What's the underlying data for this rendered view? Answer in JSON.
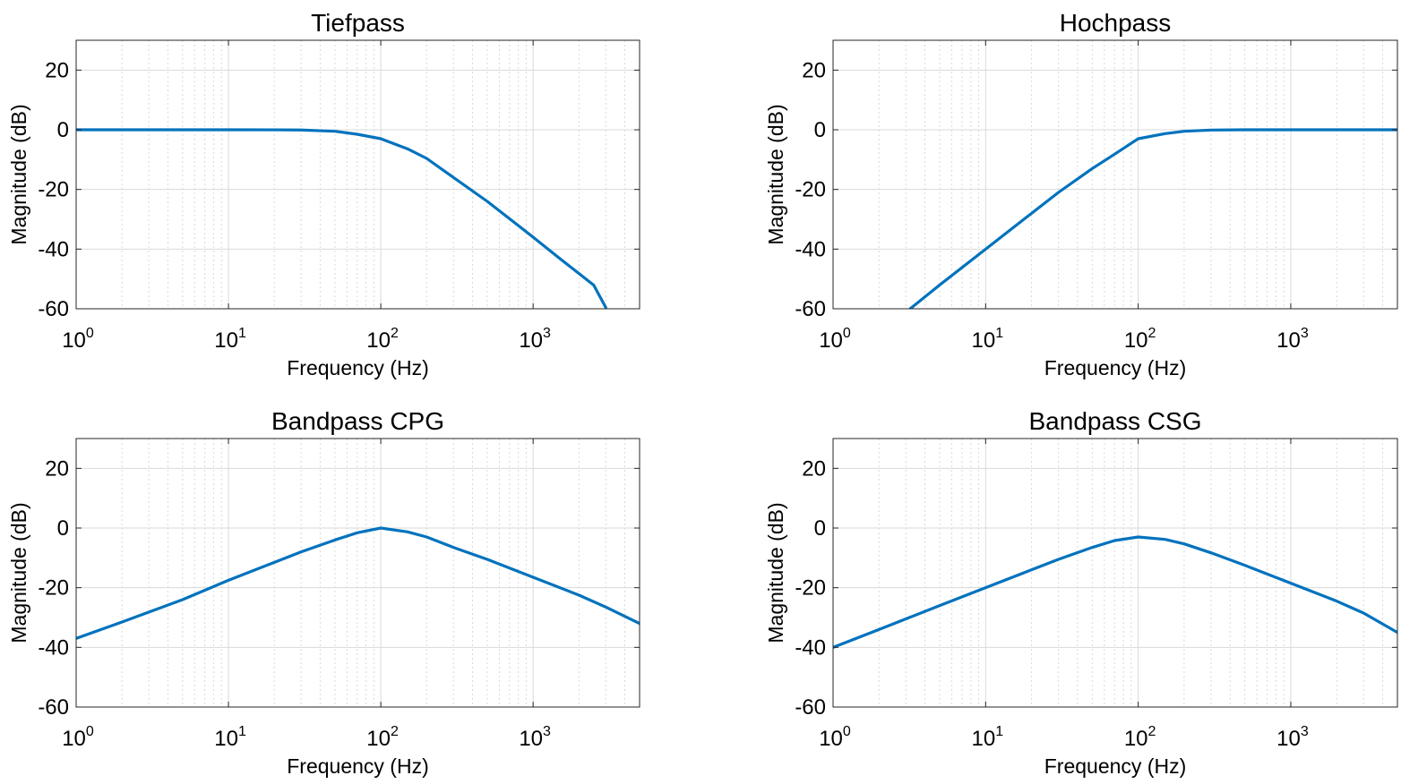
{
  "colors": {
    "line": "#0072BD",
    "axes": "#262626",
    "grid": "#d9d9d9",
    "background": "#ffffff"
  },
  "chart_data": [
    {
      "type": "line",
      "title": "Tiefpass",
      "xlabel": "Frequency  (Hz)",
      "ylabel": "Magnitude (dB)",
      "xscale": "log",
      "xlim": [
        1,
        5000
      ],
      "ylim": [
        -60,
        30
      ],
      "xticks": [
        1,
        10,
        100,
        1000
      ],
      "xticklabels": [
        {
          "base": "10",
          "exp": "0"
        },
        {
          "base": "10",
          "exp": "1"
        },
        {
          "base": "10",
          "exp": "2"
        },
        {
          "base": "10",
          "exp": "3"
        }
      ],
      "yticks": [
        -60,
        -40,
        -20,
        0,
        20
      ],
      "yticklabels": [
        "-60",
        "-40",
        "-20",
        "0",
        "20"
      ],
      "grid": true,
      "series": [
        {
          "x": [
            1,
            5,
            10,
            20,
            30,
            50,
            70,
            100,
            150,
            200,
            300,
            500,
            700,
            1000,
            1500,
            2000,
            2500,
            3000
          ],
          "y": [
            0,
            0,
            0,
            -0.02,
            -0.08,
            -0.5,
            -1.5,
            -3.0,
            -6.4,
            -9.6,
            -16.0,
            -24.0,
            -29.8,
            -36.0,
            -43.2,
            -48.2,
            -52.1,
            -59.6
          ]
        }
      ]
    },
    {
      "type": "line",
      "title": "Hochpass",
      "xlabel": "Frequency  (Hz)",
      "ylabel": "Magnitude (dB)",
      "xscale": "log",
      "xlim": [
        1,
        5000
      ],
      "ylim": [
        -60,
        30
      ],
      "xticks": [
        1,
        10,
        100,
        1000
      ],
      "xticklabels": [
        {
          "base": "10",
          "exp": "0"
        },
        {
          "base": "10",
          "exp": "1"
        },
        {
          "base": "10",
          "exp": "2"
        },
        {
          "base": "10",
          "exp": "3"
        }
      ],
      "yticks": [
        -60,
        -40,
        -20,
        0,
        20
      ],
      "yticklabels": [
        "-60",
        "-40",
        "-20",
        "0",
        "20"
      ],
      "grid": true,
      "series": [
        {
          "x": [
            3.2,
            5,
            10,
            20,
            30,
            50,
            70,
            100,
            150,
            200,
            300,
            500,
            1000,
            2000,
            5000
          ],
          "y": [
            -60,
            -52.0,
            -40.0,
            -28.0,
            -21.0,
            -13.0,
            -8.2,
            -3.0,
            -1.3,
            -0.5,
            -0.1,
            0,
            0,
            0,
            0
          ]
        }
      ]
    },
    {
      "type": "line",
      "title": "Bandpass CPG",
      "xlabel": "Frequency  (Hz)",
      "ylabel": "Magnitude (dB)",
      "xscale": "log",
      "xlim": [
        1,
        5000
      ],
      "ylim": [
        -60,
        30
      ],
      "xticks": [
        1,
        10,
        100,
        1000
      ],
      "xticklabels": [
        {
          "base": "10",
          "exp": "0"
        },
        {
          "base": "10",
          "exp": "1"
        },
        {
          "base": "10",
          "exp": "2"
        },
        {
          "base": "10",
          "exp": "3"
        }
      ],
      "yticks": [
        -60,
        -40,
        -20,
        0,
        20
      ],
      "yticklabels": [
        "-60",
        "-40",
        "-20",
        "0",
        "20"
      ],
      "grid": true,
      "series": [
        {
          "x": [
            1,
            2,
            5,
            10,
            20,
            30,
            50,
            70,
            100,
            150,
            200,
            300,
            500,
            1000,
            2000,
            3000,
            5000
          ],
          "y": [
            -37,
            -31.5,
            -24,
            -17.5,
            -11.5,
            -8,
            -4,
            -1.6,
            0,
            -1.3,
            -3,
            -6.5,
            -10.5,
            -16.5,
            -22.5,
            -26.5,
            -32
          ]
        }
      ]
    },
    {
      "type": "line",
      "title": "Bandpass CSG",
      "xlabel": "Frequency  (Hz)",
      "ylabel": "Magnitude (dB)",
      "xscale": "log",
      "xlim": [
        1,
        5000
      ],
      "ylim": [
        -60,
        30
      ],
      "xticks": [
        1,
        10,
        100,
        1000
      ],
      "xticklabels": [
        {
          "base": "10",
          "exp": "0"
        },
        {
          "base": "10",
          "exp": "1"
        },
        {
          "base": "10",
          "exp": "2"
        },
        {
          "base": "10",
          "exp": "3"
        }
      ],
      "yticks": [
        -60,
        -40,
        -20,
        0,
        20
      ],
      "yticklabels": [
        "-60",
        "-40",
        "-20",
        "0",
        "20"
      ],
      "grid": true,
      "series": [
        {
          "x": [
            1,
            2,
            5,
            10,
            20,
            30,
            50,
            70,
            100,
            150,
            200,
            300,
            500,
            1000,
            2000,
            3000,
            5000
          ],
          "y": [
            -40,
            -34,
            -26,
            -20,
            -14,
            -10.5,
            -6.5,
            -4.2,
            -3,
            -3.8,
            -5.3,
            -8.3,
            -12.5,
            -18.5,
            -24.5,
            -28.5,
            -35
          ]
        }
      ]
    }
  ]
}
